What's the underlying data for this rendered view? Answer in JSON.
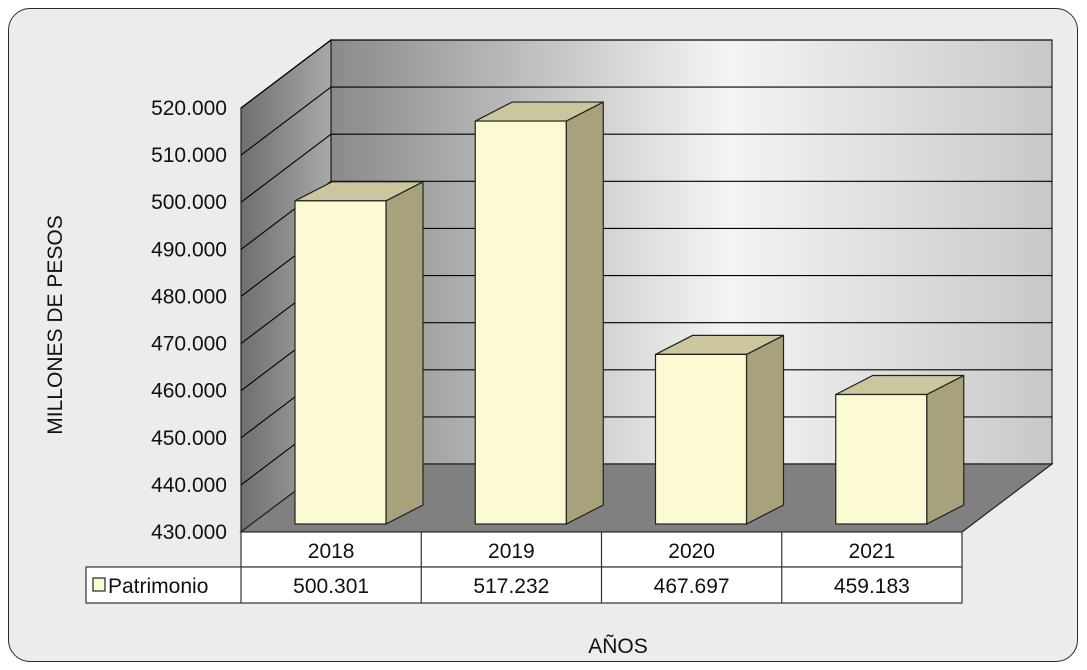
{
  "chart_data": {
    "type": "bar",
    "title": "",
    "xlabel": "AÑOS",
    "ylabel": "MILLONES DE PESOS",
    "categories": [
      "2018",
      "2019",
      "2020",
      "2021"
    ],
    "series": [
      {
        "name": "Patrimonio",
        "values": [
          500.301,
          517.232,
          467.697,
          459.183
        ],
        "value_labels": [
          "500.301",
          "517.232",
          "467.697",
          "459.183"
        ]
      }
    ],
    "ylim": [
      430,
      520
    ],
    "y_ticks": [
      430,
      440,
      450,
      460,
      470,
      480,
      490,
      500,
      510,
      520
    ],
    "y_tick_labels": [
      "430.000",
      "440.000",
      "450.000",
      "460.000",
      "470.000",
      "480.000",
      "490.000",
      "500.000",
      "510.000",
      "520.000"
    ],
    "grid": true,
    "data_table": true,
    "bar_style": "3d",
    "colors": {
      "bar_front": "#fcfad2",
      "bar_side": "#a8a27c",
      "bar_top": "#ccc69e",
      "floor": "#808080",
      "wall_light": "#f2f2f2",
      "wall_dark": "#8f8f8f",
      "grid": "#000000"
    }
  }
}
